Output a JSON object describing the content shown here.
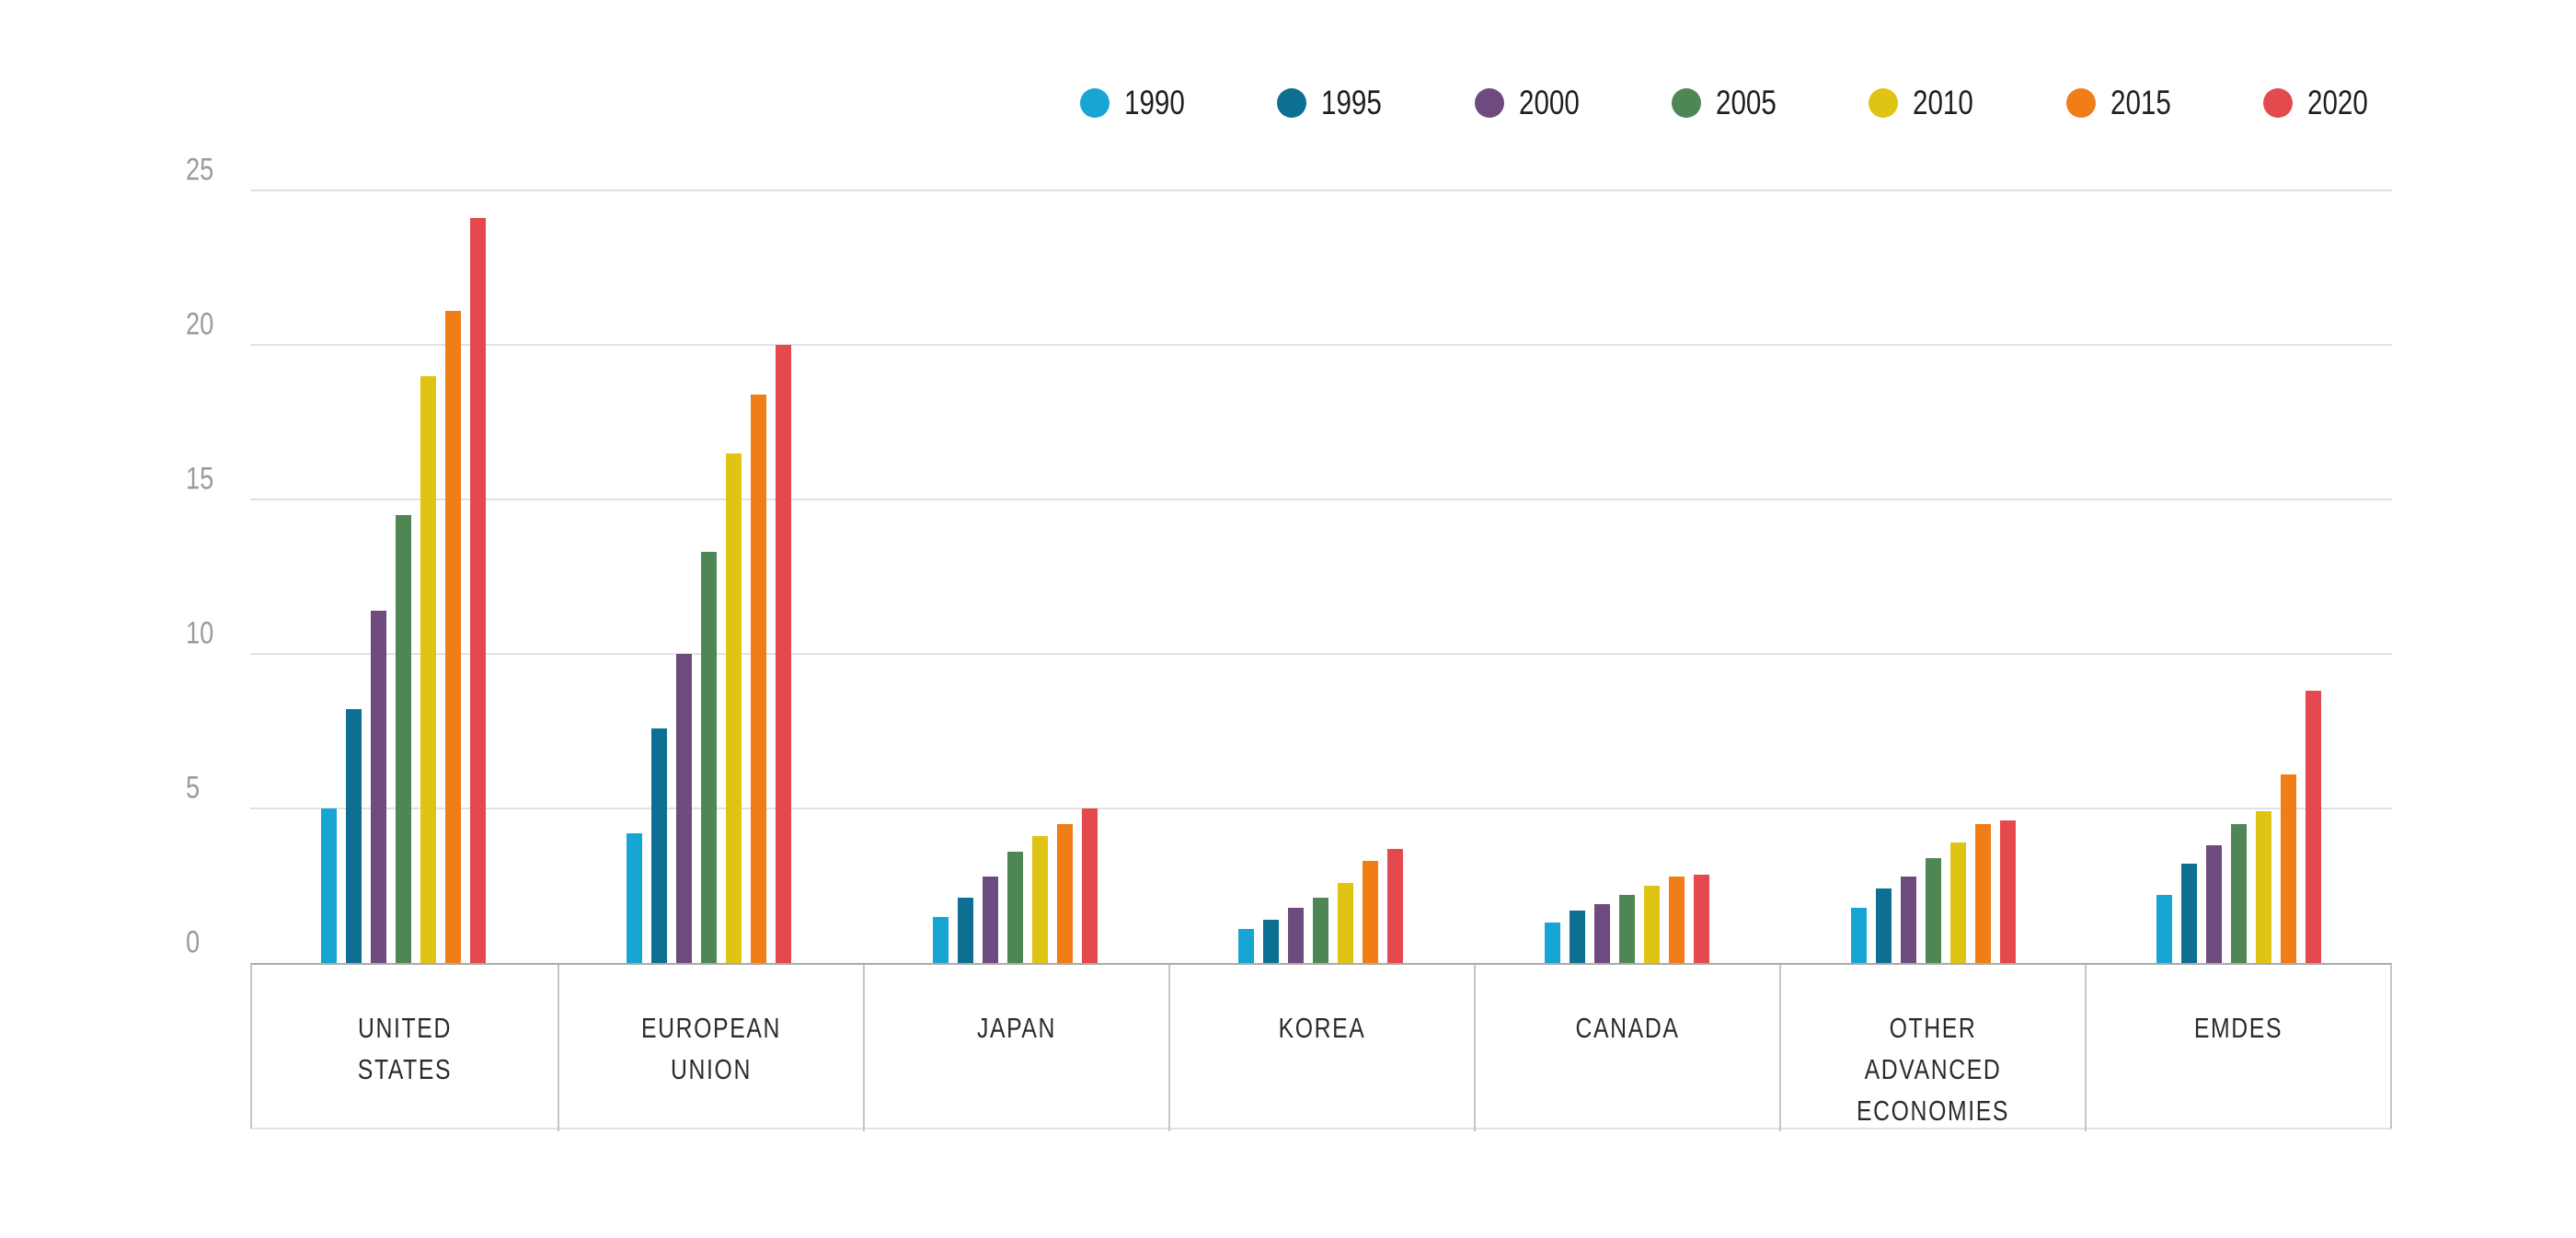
{
  "chart_data": {
    "type": "bar",
    "title": "",
    "xlabel": "",
    "ylabel": "",
    "ylim": [
      0,
      25
    ],
    "y_ticks": [
      0,
      5,
      10,
      15,
      20,
      25
    ],
    "grid": true,
    "legend_position": "top-right",
    "categories": [
      "UNITED STATES",
      "EUROPEAN UNION",
      "JAPAN",
      "KOREA",
      "CANADA",
      "OTHER ADVANCED ECONOMIES",
      "EMDES"
    ],
    "category_display_lines": [
      [
        "UNITED",
        "STATES"
      ],
      [
        "EUROPEAN",
        "UNION"
      ],
      [
        "JAPAN"
      ],
      [
        "KOREA"
      ],
      [
        "CANADA"
      ],
      [
        "OTHER",
        "ADVANCED",
        "ECONOMIES"
      ],
      [
        "EMDES"
      ]
    ],
    "series": [
      {
        "name": "1990",
        "color": "#17a5d3",
        "values": [
          5.0,
          4.2,
          1.5,
          1.1,
          1.3,
          1.8,
          2.2
        ]
      },
      {
        "name": "1995",
        "color": "#0d7092",
        "values": [
          8.2,
          7.6,
          2.1,
          1.4,
          1.7,
          2.4,
          3.2
        ]
      },
      {
        "name": "2000",
        "color": "#6e4b7e",
        "values": [
          11.4,
          10.0,
          2.8,
          1.8,
          1.9,
          2.8,
          3.8
        ]
      },
      {
        "name": "2005",
        "color": "#4f8655",
        "values": [
          14.5,
          13.3,
          3.6,
          2.1,
          2.2,
          3.4,
          4.5
        ]
      },
      {
        "name": "2010",
        "color": "#e0c414",
        "values": [
          19.0,
          16.5,
          4.1,
          2.6,
          2.5,
          3.9,
          4.9
        ]
      },
      {
        "name": "2015",
        "color": "#f07d16",
        "values": [
          21.1,
          18.4,
          4.5,
          3.3,
          2.8,
          4.5,
          6.1
        ]
      },
      {
        "name": "2020",
        "color": "#e4494e",
        "values": [
          24.1,
          20.0,
          5.0,
          3.7,
          2.85,
          4.6,
          8.8
        ]
      }
    ],
    "colors": {
      "gridline": "#e1e1e1",
      "baseline": "#aaaaaa",
      "cell_separator": "#c6c6c6",
      "tick_text": "#9b9b9b",
      "category_text": "#2b2b2b",
      "legend_text": "#1f1f1f",
      "background": "#ffffff"
    }
  }
}
